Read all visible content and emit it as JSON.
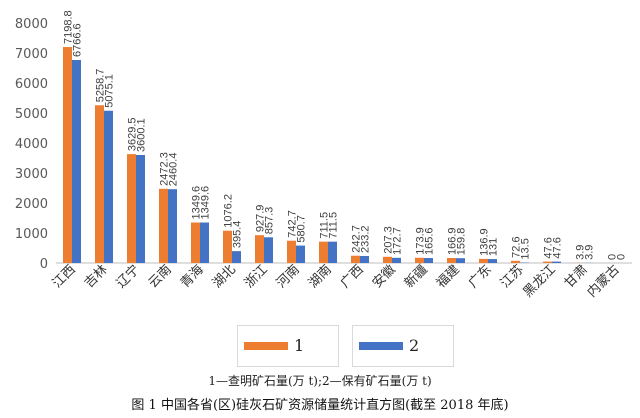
{
  "chart_data": {
    "type": "bar",
    "categories": [
      "江西",
      "吉林",
      "辽宁",
      "云南",
      "青海",
      "湖北",
      "浙江",
      "河南",
      "湖南",
      "广西",
      "安徽",
      "新疆",
      "福建",
      "广东",
      "江苏",
      "黑龙江",
      "甘肃",
      "内蒙古"
    ],
    "series": [
      {
        "name": "1",
        "color": "#ED7D31",
        "values": [
          7198.8,
          5258.7,
          3629.5,
          2472.3,
          1349.6,
          1076.2,
          927.9,
          742.7,
          711.5,
          242.7,
          207.3,
          173.9,
          166.9,
          136.9,
          72.6,
          47.6,
          3.9,
          0
        ]
      },
      {
        "name": "2",
        "color": "#4472C4",
        "values": [
          6766.6,
          5075.1,
          3600.1,
          2460.4,
          1349.6,
          395.4,
          857.3,
          580.7,
          711.5,
          233.2,
          172.7,
          165.6,
          159.8,
          131,
          13.5,
          47.6,
          3.9,
          0
        ]
      }
    ],
    "data_labels": [
      [
        "7198.8",
        "5258.7",
        "3629.5",
        "2472.3",
        "1349.6",
        "1076.2",
        "927.9",
        "742.7",
        "711.5",
        "242.7",
        "207.3",
        "173.9",
        "166.9",
        "136.9",
        "72.6",
        "47.6",
        "3.9",
        "0"
      ],
      [
        "6766.6",
        "5075.1",
        "3600.1",
        "2460.4",
        "1349.6",
        "395.4",
        "857.3",
        "580.7",
        "711.5",
        "233.2",
        "172.7",
        "165.6",
        "159.8",
        "131",
        "13.5",
        "47.6",
        "3.9",
        "0"
      ]
    ],
    "ylim": [
      0,
      8000
    ],
    "yticks": [
      0,
      1000,
      2000,
      3000,
      4000,
      5000,
      6000,
      7000,
      8000
    ],
    "grid": false,
    "legend_position": "bottom"
  },
  "legend": {
    "items": [
      {
        "label": "1",
        "color": "#ED7D31"
      },
      {
        "label": "2",
        "color": "#4472C4"
      }
    ]
  },
  "note": "1—查明矿石量(万 t);2—保有矿石量(万 t)",
  "caption": "图 1   中国各省(区)硅灰石矿资源储量统计直方图(截至 2018 年底)"
}
